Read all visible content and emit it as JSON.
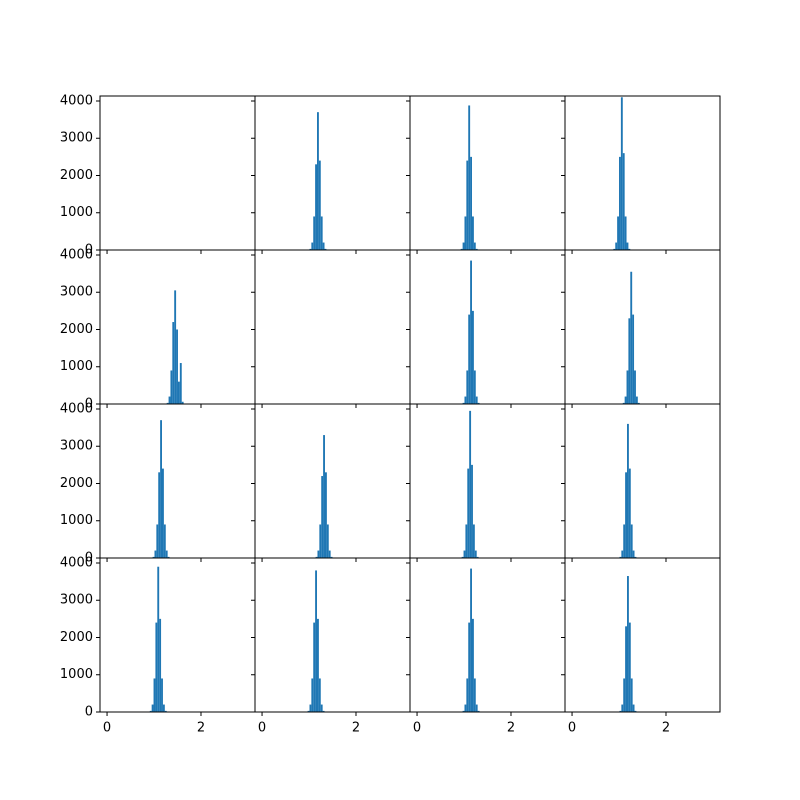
{
  "chart_data": [
    {
      "type": "hist",
      "xlim": [
        -0.15,
        3.15
      ],
      "ylim": [
        0,
        4134
      ],
      "xticks": [
        0,
        2
      ],
      "yticks": [
        0,
        1000,
        2000,
        3000,
        4000
      ],
      "color": "#1f77b4"
    },
    {
      "type": "hist",
      "xlim": [
        -0.15,
        3.15
      ],
      "ylim": [
        0,
        4134
      ],
      "xticks": [
        0,
        2
      ],
      "yticks": [
        0,
        1000,
        2000,
        3000,
        4000
      ],
      "color": "#1f77b4",
      "bins": [
        1.01,
        1.05,
        1.09,
        1.13,
        1.17,
        1.21,
        1.25,
        1.29,
        1.33,
        1.37
      ],
      "counts": [
        30,
        200,
        900,
        2300,
        3700,
        2400,
        900,
        200,
        30
      ]
    },
    {
      "type": "hist",
      "xlim": [
        -0.15,
        3.15
      ],
      "ylim": [
        0,
        4134
      ],
      "xticks": [
        0,
        2
      ],
      "yticks": [
        0,
        1000,
        2000,
        3000,
        4000
      ],
      "color": "#1f77b4",
      "bins": [
        0.93,
        0.97,
        1.01,
        1.05,
        1.09,
        1.13,
        1.17,
        1.21,
        1.25,
        1.29
      ],
      "counts": [
        30,
        200,
        900,
        2400,
        3880,
        2500,
        900,
        200,
        30
      ]
    },
    {
      "type": "hist",
      "xlim": [
        -0.15,
        3.15
      ],
      "ylim": [
        0,
        4134
      ],
      "xticks": [
        0,
        2
      ],
      "yticks": [
        0,
        1000,
        2000,
        3000,
        4000
      ],
      "color": "#1f77b4",
      "bins": [
        0.88,
        0.92,
        0.96,
        1.0,
        1.04,
        1.08,
        1.12,
        1.16,
        1.2,
        1.24
      ],
      "counts": [
        30,
        200,
        900,
        2500,
        4100,
        2600,
        900,
        200,
        30
      ]
    },
    {
      "type": "hist",
      "xlim": [
        -0.15,
        3.15
      ],
      "ylim": [
        0,
        4134
      ],
      "xticks": [
        0,
        2
      ],
      "yticks": [
        0,
        1000,
        2000,
        3000,
        4000
      ],
      "color": "#1f77b4",
      "bins": [
        1.27,
        1.31,
        1.35,
        1.39,
        1.43,
        1.47,
        1.51,
        1.55,
        1.59,
        1.63
      ],
      "counts": [
        30,
        200,
        900,
        2200,
        3050,
        2000,
        600,
        1100,
        60
      ]
    },
    {
      "type": "hist",
      "xlim": [
        -0.15,
        3.15
      ],
      "ylim": [
        0,
        4134
      ],
      "xticks": [
        0,
        2
      ],
      "yticks": [
        0,
        1000,
        2000,
        3000,
        4000
      ],
      "color": "#1f77b4"
    },
    {
      "type": "hist",
      "xlim": [
        -0.15,
        3.15
      ],
      "ylim": [
        0,
        4134
      ],
      "xticks": [
        0,
        2
      ],
      "yticks": [
        0,
        1000,
        2000,
        3000,
        4000
      ],
      "color": "#1f77b4",
      "bins": [
        0.97,
        1.01,
        1.05,
        1.09,
        1.13,
        1.17,
        1.21,
        1.25,
        1.29,
        1.33
      ],
      "counts": [
        30,
        200,
        900,
        2400,
        3850,
        2500,
        900,
        200,
        30
      ]
    },
    {
      "type": "hist",
      "xlim": [
        -0.15,
        3.15
      ],
      "ylim": [
        0,
        4134
      ],
      "xticks": [
        0,
        2
      ],
      "yticks": [
        0,
        1000,
        2000,
        3000,
        4000
      ],
      "color": "#1f77b4",
      "bins": [
        1.08,
        1.12,
        1.16,
        1.2,
        1.24,
        1.28,
        1.32,
        1.36,
        1.4,
        1.44
      ],
      "counts": [
        30,
        200,
        900,
        2300,
        3550,
        2400,
        900,
        200,
        30
      ]
    },
    {
      "type": "hist",
      "xlim": [
        -0.15,
        3.15
      ],
      "ylim": [
        0,
        4134
      ],
      "xticks": [
        0,
        2
      ],
      "yticks": [
        0,
        1000,
        2000,
        3000,
        4000
      ],
      "color": "#1f77b4",
      "bins": [
        0.97,
        1.01,
        1.05,
        1.09,
        1.13,
        1.17,
        1.21,
        1.25,
        1.29,
        1.33
      ],
      "counts": [
        30,
        200,
        900,
        2300,
        3700,
        2400,
        900,
        200,
        30
      ]
    },
    {
      "type": "hist",
      "xlim": [
        -0.15,
        3.15
      ],
      "ylim": [
        0,
        4134
      ],
      "xticks": [
        0,
        2
      ],
      "yticks": [
        0,
        1000,
        2000,
        3000,
        4000
      ],
      "color": "#1f77b4",
      "bins": [
        1.14,
        1.18,
        1.22,
        1.26,
        1.3,
        1.34,
        1.38,
        1.42,
        1.46,
        1.5
      ],
      "counts": [
        30,
        200,
        900,
        2200,
        3300,
        2300,
        900,
        200,
        30
      ]
    },
    {
      "type": "hist",
      "xlim": [
        -0.15,
        3.15
      ],
      "ylim": [
        0,
        4134
      ],
      "xticks": [
        0,
        2
      ],
      "yticks": [
        0,
        1000,
        2000,
        3000,
        4000
      ],
      "color": "#1f77b4",
      "bins": [
        0.95,
        0.99,
        1.03,
        1.07,
        1.11,
        1.15,
        1.19,
        1.23,
        1.27,
        1.31
      ],
      "counts": [
        30,
        200,
        900,
        2400,
        3950,
        2500,
        900,
        200,
        30
      ]
    },
    {
      "type": "hist",
      "xlim": [
        -0.15,
        3.15
      ],
      "ylim": [
        0,
        4134
      ],
      "xticks": [
        0,
        2
      ],
      "yticks": [
        0,
        1000,
        2000,
        3000,
        4000
      ],
      "color": "#1f77b4",
      "bins": [
        1.01,
        1.05,
        1.09,
        1.13,
        1.17,
        1.21,
        1.25,
        1.29,
        1.33,
        1.37
      ],
      "counts": [
        30,
        200,
        900,
        2300,
        3600,
        2400,
        900,
        200,
        30
      ]
    },
    {
      "type": "hist",
      "xlim": [
        -0.15,
        3.15
      ],
      "ylim": [
        0,
        4134
      ],
      "xticks": [
        0,
        2
      ],
      "yticks": [
        0,
        1000,
        2000,
        3000,
        4000
      ],
      "color": "#1f77b4",
      "bins": [
        0.91,
        0.95,
        0.99,
        1.03,
        1.07,
        1.11,
        1.15,
        1.19,
        1.23,
        1.27
      ],
      "counts": [
        30,
        200,
        900,
        2400,
        3900,
        2500,
        900,
        200,
        30
      ]
    },
    {
      "type": "hist",
      "xlim": [
        -0.15,
        3.15
      ],
      "ylim": [
        0,
        4134
      ],
      "xticks": [
        0,
        2
      ],
      "yticks": [
        0,
        1000,
        2000,
        3000,
        4000
      ],
      "color": "#1f77b4",
      "bins": [
        0.97,
        1.01,
        1.05,
        1.09,
        1.13,
        1.17,
        1.21,
        1.25,
        1.29,
        1.33
      ],
      "counts": [
        30,
        200,
        900,
        2400,
        3800,
        2500,
        900,
        200,
        30
      ]
    },
    {
      "type": "hist",
      "xlim": [
        -0.15,
        3.15
      ],
      "ylim": [
        0,
        4134
      ],
      "xticks": [
        0,
        2
      ],
      "yticks": [
        0,
        1000,
        2000,
        3000,
        4000
      ],
      "color": "#1f77b4",
      "bins": [
        0.97,
        1.01,
        1.05,
        1.09,
        1.13,
        1.17,
        1.21,
        1.25,
        1.29,
        1.33
      ],
      "counts": [
        30,
        200,
        900,
        2400,
        3850,
        2500,
        900,
        200,
        30
      ]
    },
    {
      "type": "hist",
      "xlim": [
        -0.15,
        3.15
      ],
      "ylim": [
        0,
        4134
      ],
      "xticks": [
        0,
        2
      ],
      "yticks": [
        0,
        1000,
        2000,
        3000,
        4000
      ],
      "color": "#1f77b4",
      "bins": [
        1.01,
        1.05,
        1.09,
        1.13,
        1.17,
        1.21,
        1.25,
        1.29,
        1.33,
        1.37
      ],
      "counts": [
        30,
        200,
        900,
        2300,
        3650,
        2400,
        900,
        200,
        30
      ]
    }
  ]
}
